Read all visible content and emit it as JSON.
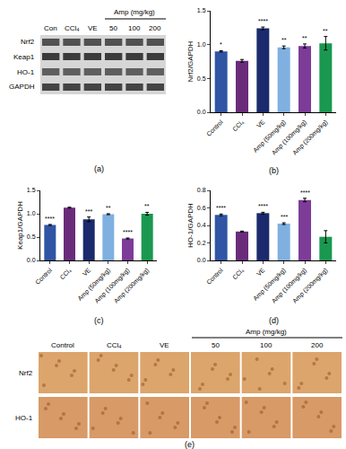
{
  "chart_data": [
    {
      "type": "bar",
      "title": "(b)",
      "y_label": "Nrf2/GAPDH",
      "categories": [
        "Control",
        "CCl₄",
        "VE",
        "Amp (50mg/kg)",
        "Amp (100mg/kg)",
        "Amp (200mg/kg)"
      ],
      "values": [
        0.9,
        0.76,
        1.24,
        0.96,
        0.98,
        1.02
      ],
      "errors": [
        0.01,
        0.02,
        0.02,
        0.02,
        0.03,
        0.1
      ],
      "colors": [
        "#2f55a4",
        "#6a2c7a",
        "#1a2a6c",
        "#7fb0e0",
        "#7d3c98",
        "#1a9850"
      ],
      "ylim": [
        0,
        1.5
      ],
      "yticks": [
        {
          "value": 0,
          "label": "0.0"
        },
        0.5,
        {
          "value": 1,
          "label": "1.0"
        },
        1.5
      ],
      "grid": false,
      "annotations": [
        {
          "category": "Control",
          "text": "*"
        },
        {
          "category": "VE",
          "text": "****"
        },
        {
          "category": "Amp (50mg/kg)",
          "text": "**"
        },
        {
          "category": "Amp (100mg/kg)",
          "text": "**"
        },
        {
          "category": "Amp (200mg/kg)",
          "text": "**"
        }
      ]
    },
    {
      "type": "bar",
      "title": "(c)",
      "y_label": "Keap1/GAPDH",
      "categories": [
        "Control",
        "CCl₄",
        "VE",
        "Amp (50mg/kg)",
        "Amp (100mg/kg)",
        "Amp (200mg/kg)"
      ],
      "values": [
        0.76,
        1.13,
        0.88,
        0.99,
        0.47,
        1.0
      ],
      "errors": [
        0.01,
        0.01,
        0.05,
        0.01,
        0.01,
        0.03
      ],
      "colors": [
        "#2f55a4",
        "#6a2c7a",
        "#1a2a6c",
        "#7fb0e0",
        "#7d3c98",
        "#1a9850"
      ],
      "ylim": [
        0,
        1.5
      ],
      "yticks": [
        {
          "value": 0,
          "label": "0.0"
        },
        0.5,
        {
          "value": 1,
          "label": "1.0"
        },
        1.5
      ],
      "grid": false,
      "annotations": [
        {
          "category": "Control",
          "text": "****"
        },
        {
          "category": "VE",
          "text": "***"
        },
        {
          "category": "Amp (50mg/kg)",
          "text": "**"
        },
        {
          "category": "Amp (100mg/kg)",
          "text": "****"
        },
        {
          "category": "Amp (200mg/kg)",
          "text": "**"
        }
      ]
    },
    {
      "type": "bar",
      "title": "(d)",
      "y_label": "HO-1/GAPDH",
      "categories": [
        "Control",
        "CCl₄",
        "VE",
        "Amp (50mg/kg)",
        "Amp (100mg/kg)",
        "Amp (200mg/kg)"
      ],
      "values": [
        0.52,
        0.33,
        0.54,
        0.42,
        0.69,
        0.27
      ],
      "errors": [
        0.01,
        0.005,
        0.01,
        0.01,
        0.02,
        0.07
      ],
      "colors": [
        "#2f55a4",
        "#6a2c7a",
        "#1a2a6c",
        "#7fb0e0",
        "#7d3c98",
        "#1a9850"
      ],
      "ylim": [
        0,
        0.8
      ],
      "yticks": [
        {
          "value": 0,
          "label": "0.0"
        },
        0.2,
        0.4,
        0.6,
        0.8
      ],
      "grid": false,
      "annotations": [
        {
          "category": "Control",
          "text": "****"
        },
        {
          "category": "VE",
          "text": "****"
        },
        {
          "category": "Amp (50mg/kg)",
          "text": "***"
        },
        {
          "category": "Amp (100mg/kg)",
          "text": "****"
        }
      ]
    }
  ],
  "western_blot": {
    "panel_label": "(a)",
    "row_labels": [
      "Nrf2",
      "Keap1",
      "HO-1",
      "GAPDH"
    ],
    "column_labels": [
      "Con",
      "CCl₄",
      "VE",
      "50",
      "100",
      "200"
    ],
    "group_label": "Amp (mg/kg)"
  },
  "ihc": {
    "panel_label": "(e)",
    "row_labels": [
      "Nrf2",
      "HO-1"
    ],
    "column_labels": [
      "Control",
      "CCl₄",
      "VE",
      "50",
      "100",
      "200"
    ],
    "group_label": "Amp (mg/kg)"
  }
}
